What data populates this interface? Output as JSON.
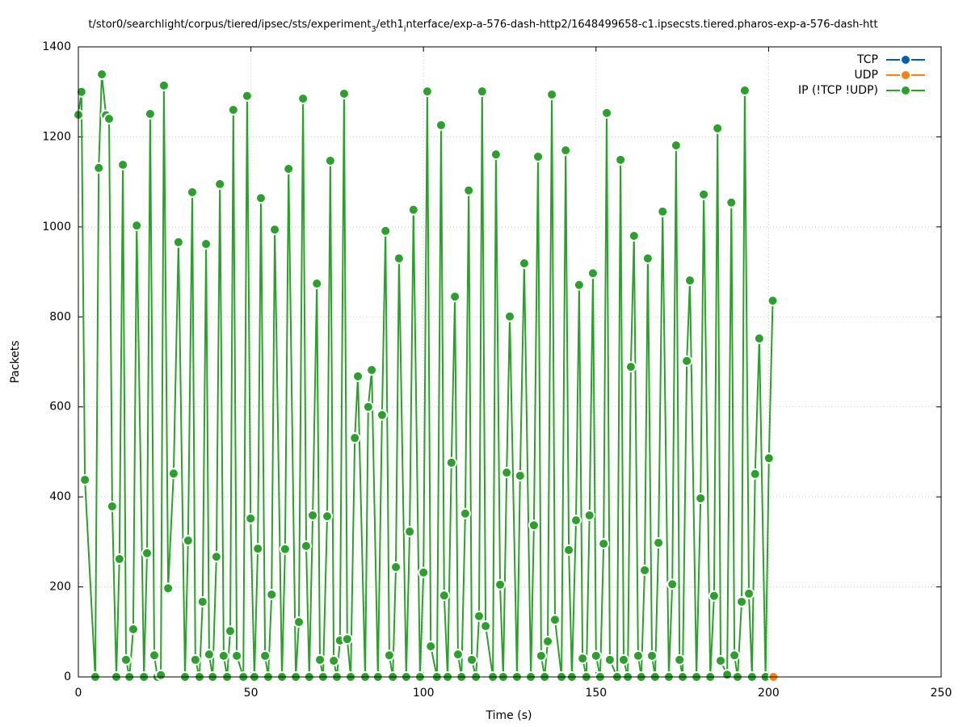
{
  "chart_data": {
    "type": "line",
    "title": [
      "t/stor0/searchlight/corpus/tiered/ipsec/sts/experiment",
      "3",
      "/eth1",
      "i",
      "nterface/exp-a-576-dash-http2/1648499658-c1.ipsecsts.tiered.pharos-exp-a-576-dash-htt"
    ],
    "x_label": "Time (s)",
    "y_label": "Packets",
    "xlim": [
      0,
      250
    ],
    "ylim": [
      0,
      1400
    ],
    "xticks": [
      0,
      50,
      100,
      150,
      200,
      250
    ],
    "yticks": [
      0,
      200,
      400,
      600,
      800,
      1000,
      1200,
      1400
    ],
    "grid": true,
    "legend": "top-right",
    "series": [
      {
        "name": "TCP",
        "color": "#0060ad",
        "x": [],
        "values": []
      },
      {
        "name": "UDP",
        "color": "#ff7f0e",
        "x": [
          201.4
        ],
        "values": [
          0
        ]
      },
      {
        "name": "IP (!TCP  !UDP)",
        "color": "#2ca02c",
        "x": [
          0,
          0.9,
          1.9,
          4.9,
          5.9,
          6.8,
          8.0,
          8.9,
          9.8,
          11.0,
          11.9,
          12.9,
          13.8,
          14.8,
          15.9,
          16.9,
          19.0,
          19.9,
          20.8,
          22.0,
          22.9,
          23.9,
          24.8,
          26.0,
          27.6,
          29.0,
          30.9,
          31.8,
          33.0,
          33.9,
          35.1,
          36.0,
          37.0,
          37.9,
          38.9,
          40.0,
          41.0,
          42.1,
          43.1,
          44.0,
          44.9,
          45.9,
          47.8,
          48.9,
          49.9,
          51.0,
          52.0,
          52.9,
          54.1,
          55.0,
          56.0,
          56.9,
          59.0,
          59.9,
          60.9,
          63.0,
          63.9,
          65.1,
          66.0,
          66.9,
          67.9,
          69.1,
          70.0,
          70.9,
          72.1,
          73.0,
          74.0,
          74.9,
          75.8,
          77.0,
          77.9,
          78.9,
          80.1,
          81.0,
          83.1,
          84.0,
          85.0,
          86.8,
          88.0,
          89.0,
          90.1,
          91.1,
          92.0,
          92.9,
          95.0,
          96.0,
          97.1,
          99.0,
          100.0,
          101.1,
          102.1,
          103.9,
          105.1,
          106.0,
          107.0,
          108.1,
          109.1,
          110.0,
          111.0,
          112.1,
          113.1,
          114.0,
          115.2,
          116.1,
          117.0,
          118.0,
          120.1,
          121.0,
          122.2,
          123.1,
          124.1,
          125.0,
          127.1,
          128.0,
          129.2,
          131.1,
          132.0,
          133.2,
          134.1,
          135.1,
          136.0,
          137.2,
          138.1,
          140.0,
          141.2,
          142.1,
          143.0,
          144.2,
          145.1,
          146.1,
          147.2,
          148.1,
          149.1,
          150.0,
          151.2,
          152.2,
          153.1,
          154.0,
          156.1,
          157.1,
          158.0,
          159.2,
          160.1,
          161.0,
          162.2,
          163.1,
          164.1,
          165.0,
          166.2,
          167.1,
          168.1,
          169.3,
          171.1,
          172.1,
          173.2,
          174.2,
          175.1,
          176.3,
          177.2,
          179.1,
          180.3,
          181.2,
          183.1,
          184.2,
          185.2,
          186.1,
          188.0,
          189.2,
          190.1,
          191.0,
          192.2,
          193.1,
          194.3,
          195.2,
          196.1,
          197.3,
          199.1,
          200.1,
          201.2
        ],
        "values": [
          1249,
          1300,
          438,
          0,
          1131,
          1339,
          1248,
          1240,
          379,
          0,
          262,
          1138,
          38,
          0,
          106,
          1003,
          0,
          275,
          1251,
          48,
          0,
          4,
          1314,
          197,
          452,
          966,
          0,
          303,
          1077,
          38,
          0,
          167,
          962,
          50,
          0,
          267,
          1095,
          47,
          0,
          102,
          1260,
          47,
          0,
          1291,
          352,
          0,
          285,
          1064,
          47,
          0,
          183,
          994,
          0,
          284,
          1129,
          0,
          122,
          1285,
          291,
          0,
          359,
          874,
          38,
          0,
          357,
          1147,
          36,
          0,
          81,
          1296,
          84,
          0,
          531,
          668,
          0,
          600,
          682,
          0,
          582,
          991,
          48,
          0,
          244,
          930,
          0,
          323,
          1038,
          0,
          232,
          1301,
          68,
          0,
          1226,
          181,
          0,
          476,
          845,
          50,
          0,
          363,
          1081,
          38,
          0,
          135,
          1301,
          113,
          0,
          1161,
          205,
          0,
          454,
          801,
          0,
          447,
          919,
          0,
          337,
          1156,
          47,
          0,
          79,
          1294,
          127,
          0,
          1170,
          282,
          0,
          348,
          871,
          41,
          0,
          359,
          897,
          47,
          0,
          296,
          1253,
          38,
          0,
          1149,
          38,
          0,
          689,
          980,
          47,
          0,
          237,
          930,
          47,
          0,
          298,
          1034,
          0,
          206,
          1181,
          38,
          0,
          702,
          881,
          0,
          397,
          1072,
          0,
          180,
          1219,
          36,
          5,
          1054,
          48,
          0,
          167,
          1303,
          185,
          0,
          451,
          752,
          0,
          486,
          836
        ]
      }
    ]
  }
}
